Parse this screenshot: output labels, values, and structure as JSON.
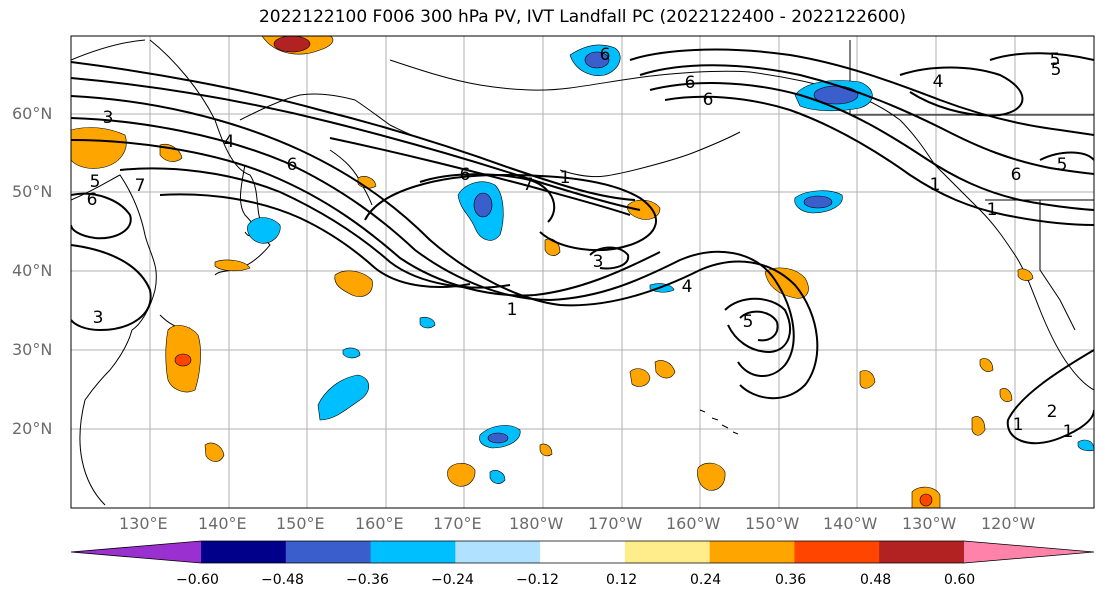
{
  "title": "2022122100 F006 300 hPa PV, IVT Landfall PC (2022122400 - 2022122600)",
  "lat_ticks": [
    "60°N",
    "50°N",
    "40°N",
    "30°N",
    "20°N"
  ],
  "lon_ticks": [
    "130°E",
    "140°E",
    "150°E",
    "160°E",
    "170°E",
    "180°W",
    "170°W",
    "160°W",
    "150°W",
    "140°W",
    "130°W",
    "120°W"
  ],
  "colorbar": {
    "labels": [
      "−0.60",
      "−0.48",
      "−0.36",
      "−0.24",
      "−0.12",
      "0.12",
      "0.24",
      "0.36",
      "0.48",
      "0.60"
    ],
    "colors": [
      "#9b30d0",
      "#00008b",
      "#3a5fcd",
      "#00bfff",
      "#b0e2ff",
      "#ffffff",
      "#ffec8b",
      "#ffa500",
      "#ff4500",
      "#b22222",
      "#ff82ab"
    ]
  },
  "contour_labels": [
    "6",
    "7",
    "3",
    "5",
    "4",
    "6",
    "3",
    "1",
    "7",
    "4",
    "5",
    "6",
    "6",
    "6",
    "5",
    "4",
    "1",
    "1",
    "6",
    "1",
    "5",
    "3",
    "6",
    "5",
    "1",
    "2",
    "1"
  ],
  "colors": {
    "purple": "#9b30d0",
    "navy": "#00008b",
    "blue": "#3a5fcd",
    "cyan": "#00bfff",
    "lightblue": "#b0e2ff",
    "yellow": "#ffec8b",
    "orange": "#ffa500",
    "redorange": "#ff4500",
    "darkred": "#b22222",
    "pink": "#ff82ab"
  }
}
